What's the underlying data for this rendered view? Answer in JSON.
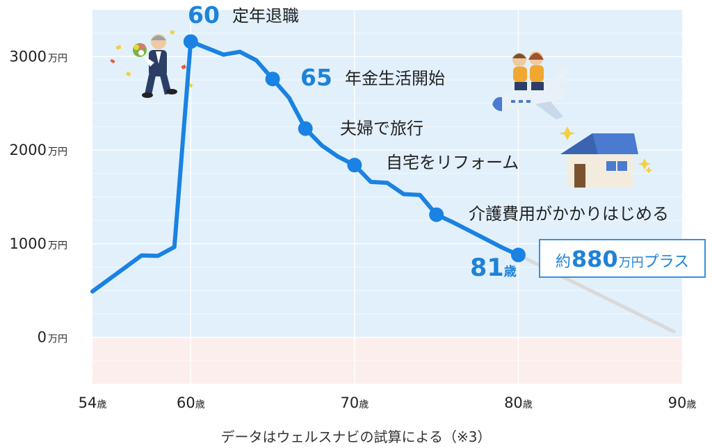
{
  "chart_data": {
    "type": "line",
    "x_unit": "歳",
    "y_unit": "万円",
    "xlim": [
      54,
      90
    ],
    "ylim": [
      -500,
      3500
    ],
    "x_ticks": [
      {
        "value": 54,
        "label": "54"
      },
      {
        "value": 60,
        "label": "60"
      },
      {
        "value": 70,
        "label": "70"
      },
      {
        "value": 80,
        "label": "80"
      },
      {
        "value": 90,
        "label": "90"
      }
    ],
    "y_ticks": [
      {
        "value": 0,
        "label": "0"
      },
      {
        "value": 1000,
        "label": "1000"
      },
      {
        "value": 2000,
        "label": "2000"
      },
      {
        "value": 3000,
        "label": "3000"
      }
    ],
    "grid": true,
    "series": [
      {
        "color": "#1a82e2",
        "points": [
          [
            54,
            490
          ],
          [
            57,
            875
          ],
          [
            58,
            870
          ],
          [
            59,
            965
          ],
          [
            60,
            3160
          ],
          [
            61,
            3090
          ],
          [
            62,
            3020
          ],
          [
            63,
            3050
          ],
          [
            64,
            2960
          ],
          [
            65,
            2760
          ],
          [
            66,
            2560
          ],
          [
            67,
            2230
          ],
          [
            68,
            2050
          ],
          [
            69,
            1930
          ],
          [
            70,
            1840
          ],
          [
            71,
            1660
          ],
          [
            72,
            1650
          ],
          [
            73,
            1530
          ],
          [
            74,
            1520
          ],
          [
            75,
            1310
          ],
          [
            76,
            1230
          ],
          [
            77,
            1140
          ],
          [
            78,
            1050
          ],
          [
            79,
            960
          ],
          [
            80,
            880
          ]
        ]
      },
      {
        "color": "#d9d9d9",
        "points": [
          [
            80,
            880
          ],
          [
            89.5,
            60
          ]
        ]
      }
    ],
    "markers": [
      {
        "x": 60,
        "y": 3160
      },
      {
        "x": 65,
        "y": 2760
      },
      {
        "x": 67,
        "y": 2230
      },
      {
        "x": 70,
        "y": 1840
      },
      {
        "x": 75,
        "y": 1310
      },
      {
        "x": 80,
        "y": 880
      }
    ],
    "annotations": [
      {
        "number": "60",
        "text": "定年退職"
      },
      {
        "number": "65",
        "text": "年金生活開始"
      },
      {
        "text": "夫婦で旅行"
      },
      {
        "text": "自宅をリフォーム"
      },
      {
        "text": "介護費用がかかりはじめる"
      }
    ],
    "final_age": {
      "number": "81",
      "unit": "歳"
    },
    "callout": {
      "prefix": "約",
      "number": "880",
      "unit": "万円",
      "suffix": "プラス"
    },
    "caption": "データはウェルスナビの試算による（※3）",
    "colors": {
      "plot_background": "#e1f0fb",
      "negative_background": "#fdeeee",
      "line": "#1a82e2",
      "projection": "#d9d9d9",
      "accent_text": "#1e82d8"
    },
    "illustrations": [
      "retiree-with-bouquet",
      "couple-on-airplane",
      "house-with-sparkles"
    ]
  }
}
